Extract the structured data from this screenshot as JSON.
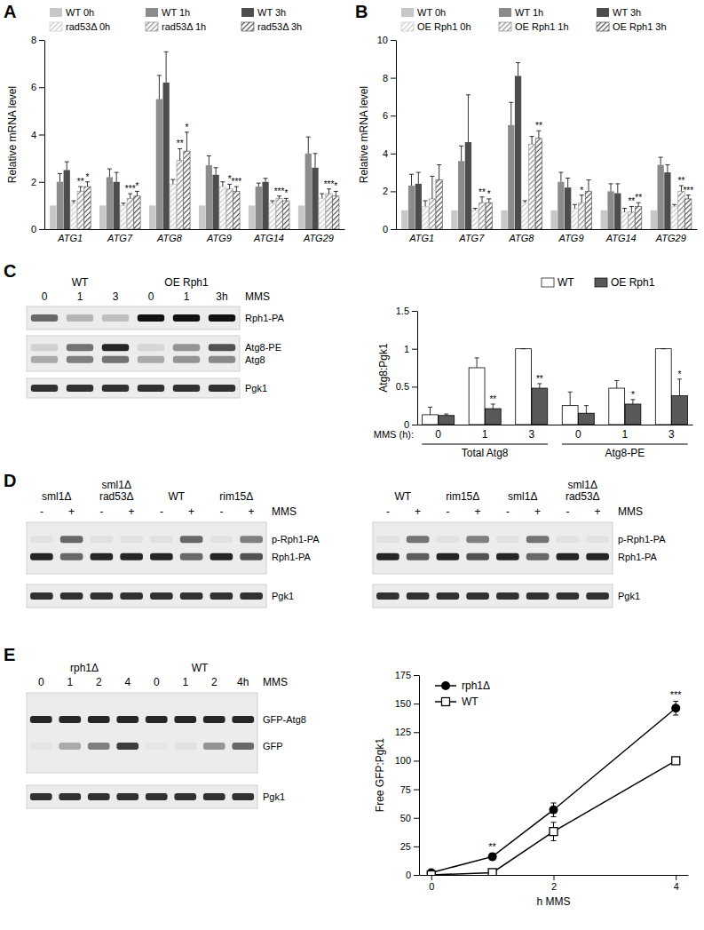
{
  "chart_data": [
    {
      "label": "A",
      "type": "bar",
      "y_label": "Relative mRNA level",
      "legend": "top",
      "categories": [
        "ATG1",
        "ATG7",
        "ATG8",
        "ATG9",
        "ATG14",
        "ATG29"
      ],
      "ylim": [
        0,
        8
      ],
      "yticks": [
        0,
        2,
        4,
        6,
        8
      ],
      "series": [
        {
          "name": "WT 0h",
          "color": "#c8c8c8",
          "marker": "solid",
          "values": [
            1,
            1,
            1,
            1,
            1,
            1
          ]
        },
        {
          "name": "WT 1h",
          "color": "#8c8c8c",
          "marker": "solid",
          "values": [
            2.0,
            2.2,
            5.5,
            2.7,
            1.8,
            3.2
          ],
          "errors": [
            0.35,
            0.35,
            1.0,
            0.4,
            0.15,
            0.7
          ]
        },
        {
          "name": "WT 3h",
          "color": "#4d4d4d",
          "marker": "solid",
          "values": [
            2.5,
            2.0,
            6.2,
            2.3,
            2.0,
            2.6
          ],
          "errors": [
            0.35,
            0.4,
            1.3,
            0.3,
            0.15,
            0.6
          ]
        },
        {
          "name": "rad53Δ 0h",
          "color": "#c8c8c8",
          "marker": "hatched",
          "values": [
            1.1,
            1.0,
            1.9,
            1.8,
            1.1,
            1.3
          ],
          "errors": [
            0.1,
            0.1,
            0.2,
            0.2,
            0.1,
            0.2
          ]
        },
        {
          "name": "rad53Δ 1h",
          "color": "#8c8c8c",
          "marker": "hatched",
          "values": [
            1.6,
            1.3,
            2.9,
            1.7,
            1.3,
            1.5
          ],
          "errors": [
            0.2,
            0.2,
            0.5,
            0.2,
            0.1,
            0.2
          ],
          "significance": [
            "**",
            "***",
            "**",
            "*",
            "***",
            "***"
          ]
        },
        {
          "name": "rad53Δ 3h",
          "color": "#4d4d4d",
          "marker": "hatched",
          "values": [
            1.8,
            1.4,
            3.3,
            1.6,
            1.2,
            1.4
          ],
          "errors": [
            0.2,
            0.2,
            0.8,
            0.2,
            0.1,
            0.2
          ],
          "significance": [
            "*",
            "*",
            "*",
            "***",
            "*",
            "*"
          ]
        }
      ]
    },
    {
      "label": "B",
      "type": "bar",
      "y_label": "Relative mRNA level",
      "legend": "top",
      "categories": [
        "ATG1",
        "ATG7",
        "ATG8",
        "ATG9",
        "ATG14",
        "ATG29"
      ],
      "ylim": [
        0,
        10
      ],
      "yticks": [
        0,
        2,
        4,
        6,
        8,
        10
      ],
      "series": [
        {
          "name": "WT 0h",
          "color": "#c8c8c8",
          "marker": "solid",
          "values": [
            1,
            1,
            1,
            1,
            1,
            1
          ]
        },
        {
          "name": "WT 1h",
          "color": "#8c8c8c",
          "marker": "solid",
          "values": [
            2.3,
            3.6,
            5.5,
            2.5,
            2.0,
            3.4
          ],
          "errors": [
            0.6,
            0.8,
            1.2,
            0.5,
            0.4,
            0.4
          ]
        },
        {
          "name": "WT 3h",
          "color": "#4d4d4d",
          "marker": "solid",
          "values": [
            2.4,
            4.6,
            8.1,
            2.2,
            1.9,
            3.0
          ],
          "errors": [
            0.6,
            2.5,
            0.7,
            0.5,
            0.5,
            0.4
          ]
        },
        {
          "name": "OE Rph1 0h",
          "color": "#c8c8c8",
          "marker": "hatched",
          "values": [
            1.2,
            1.0,
            1.4,
            1.1,
            0.9,
            1.2
          ],
          "errors": [
            0.3,
            0.1,
            0.1,
            0.2,
            0.2,
            0.1
          ]
        },
        {
          "name": "OE Rph1 1h",
          "color": "#8c8c8c",
          "marker": "hatched",
          "values": [
            1.6,
            1.4,
            4.5,
            1.4,
            0.9,
            2.0
          ],
          "errors": [
            1.2,
            0.3,
            0.4,
            0.4,
            0.3,
            0.3
          ],
          "significance": [
            null,
            "**",
            null,
            "*",
            "**",
            "**"
          ]
        },
        {
          "name": "OE Rph1 3h",
          "color": "#4d4d4d",
          "marker": "hatched",
          "values": [
            2.6,
            1.4,
            4.8,
            2.0,
            1.2,
            1.6
          ],
          "errors": [
            0.8,
            0.2,
            0.4,
            0.6,
            0.2,
            0.2
          ],
          "significance": [
            null,
            "*",
            "**",
            null,
            "**",
            "***"
          ]
        }
      ]
    },
    {
      "type": "bar",
      "y_label": "Atg8:Pgk1",
      "x_label": "MMS (h):",
      "legend": "top right",
      "categories": [
        "0",
        "1",
        "3",
        "0",
        "1",
        "3"
      ],
      "groups": [
        "Total Atg8",
        "Atg8-PE"
      ],
      "ylim": [
        0,
        1.5
      ],
      "yticks": [
        0,
        0.5,
        1,
        1.5
      ],
      "series": [
        {
          "name": "WT",
          "color": "#ffffff",
          "marker": "solid",
          "values": [
            0.13,
            0.75,
            1,
            0.25,
            0.48,
            1
          ],
          "errors": [
            0.1,
            0.13,
            0,
            0.18,
            0.1,
            0
          ]
        },
        {
          "name": "OE Rph1",
          "color": "#595959",
          "marker": "solid",
          "values": [
            0.12,
            0.21,
            0.48,
            0.15,
            0.27,
            0.38
          ],
          "errors": [
            0.02,
            0.06,
            0.06,
            0.1,
            0.06,
            0.22
          ],
          "significance": [
            null,
            "**",
            "**",
            null,
            "*",
            "*"
          ]
        }
      ]
    },
    {
      "type": "line",
      "x_label": "h MMS",
      "y_label": "Free GFP:Pgk1",
      "legend": "upper left",
      "x": [
        0,
        1,
        2,
        4
      ],
      "xlim": [
        -0.2,
        4.2
      ],
      "xticks": [
        0,
        2,
        4
      ],
      "ylim": [
        0,
        175
      ],
      "yticks": [
        0,
        25,
        50,
        75,
        100,
        125,
        150,
        175
      ],
      "series": [
        {
          "name": "rph1Δ",
          "color": "#000000",
          "marker": "circle",
          "values": [
            2,
            16,
            57,
            146
          ],
          "errors": [
            2,
            3,
            6,
            6
          ],
          "significance": [
            null,
            "**",
            null,
            "***"
          ]
        },
        {
          "name": "WT",
          "color": "#000000",
          "marker": "square",
          "values": [
            0,
            2,
            38,
            100
          ],
          "errors": [
            0,
            2,
            8,
            0
          ]
        }
      ]
    }
  ],
  "blots": [
    {
      "label": "C",
      "condition": "MMS",
      "groups": [
        {
          "name": [
            "WT"
          ],
          "lanes": [
            "0",
            "1",
            "3"
          ]
        },
        {
          "name": [
            "OE Rph1"
          ],
          "lanes": [
            "0",
            "1",
            "3h"
          ]
        }
      ],
      "rows": [
        [
          "Rph1-PA"
        ],
        [
          "Atg8-PE",
          "Atg8"
        ],
        [
          "Pgk1"
        ]
      ]
    },
    {
      "label": "D",
      "condition": "MMS",
      "groups": [
        {
          "name": [
            "sml1Δ"
          ],
          "lanes": [
            "-",
            "+"
          ]
        },
        {
          "name": [
            "sml1Δ",
            "rad53Δ"
          ],
          "lanes": [
            "-",
            "+"
          ]
        },
        {
          "name": [
            "WT"
          ],
          "lanes": [
            "-",
            "+"
          ]
        },
        {
          "name": [
            "rim15Δ"
          ],
          "lanes": [
            "-",
            "+"
          ]
        }
      ],
      "rows": [
        [
          "p-Rph1-PA",
          "Rph1-PA"
        ],
        [
          "Pgk1"
        ]
      ]
    },
    {
      "condition": "MMS",
      "groups": [
        {
          "name": [
            "WT"
          ],
          "lanes": [
            "-",
            "+"
          ]
        },
        {
          "name": [
            "rim15Δ"
          ],
          "lanes": [
            "-",
            "+"
          ]
        },
        {
          "name": [
            "sml1Δ"
          ],
          "lanes": [
            "-",
            "+"
          ]
        },
        {
          "name": [
            "sml1Δ",
            "rad53Δ"
          ],
          "lanes": [
            "-",
            "+"
          ]
        }
      ],
      "rows": [
        [
          "p-Rph1-PA",
          "Rph1-PA"
        ],
        [
          "Pgk1"
        ]
      ]
    },
    {
      "label": "E",
      "condition": "MMS",
      "groups": [
        {
          "name": [
            "rph1Δ"
          ],
          "lanes": [
            "0",
            "1",
            "2",
            "4"
          ]
        },
        {
          "name": [
            "WT"
          ],
          "lanes": [
            "0",
            "1",
            "2",
            "4h"
          ]
        }
      ],
      "rows": [
        [
          "GFP-Atg8",
          "GFP"
        ],
        [
          "Pgk1"
        ]
      ]
    }
  ]
}
